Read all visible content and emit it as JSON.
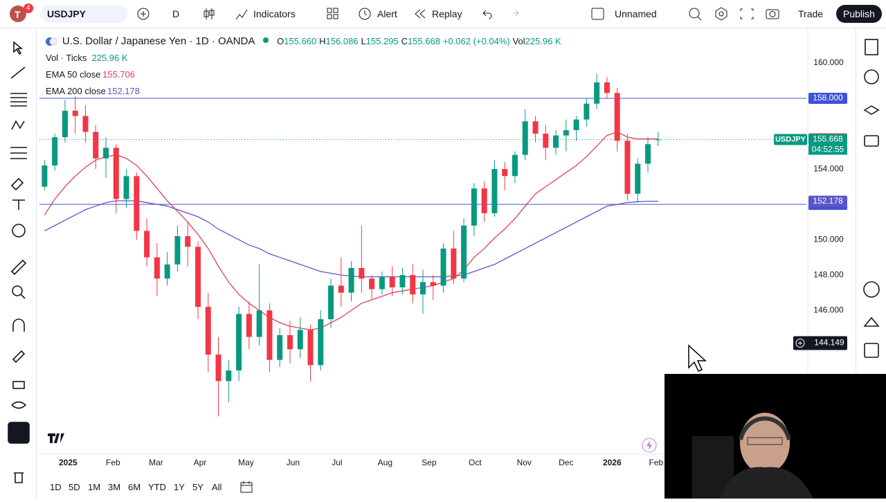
{
  "toolbar": {
    "avatar": "T",
    "badge": "4",
    "symbol": "USDJPY",
    "interval": "D",
    "indicators": "Indicators",
    "alert": "Alert",
    "replay": "Replay",
    "layout": "Unnamed",
    "trade": "Trade",
    "publish": "Publish"
  },
  "legend": {
    "title": "U.S. Dollar / Japanese Yen · 1D · OANDA",
    "o_label": "O",
    "open": "155.660",
    "h_label": "H",
    "high": "156.086",
    "l_label": "L",
    "low": "155.295",
    "c_label": "C",
    "close": "155.668",
    "change": "+0.062 (+0.04%)",
    "vol_label": "Vol",
    "vol": "225.96 K",
    "vol_ticks": "Vol · Ticks",
    "vol_ticks_value": "225.96 K"
  },
  "chart_data": {
    "type": "candlestick",
    "symbol_tag": "USDJPY",
    "countdown": "04:52:55",
    "ylim": [
      137.9,
      161.8
    ],
    "yticks": [
      {
        "value": 160,
        "label": "160.000"
      },
      {
        "value": 154,
        "label": "154.000"
      },
      {
        "value": 150,
        "label": "150.000"
      },
      {
        "value": 148,
        "label": "148.000"
      },
      {
        "value": 146,
        "label": "146.000"
      }
    ],
    "xlim": [
      -0.5,
      74.5
    ],
    "xticks": [
      {
        "value": 2.3,
        "label": "2025",
        "bold": true
      },
      {
        "value": 6.7,
        "label": "Feb"
      },
      {
        "value": 10.9,
        "label": "Mar"
      },
      {
        "value": 15.2,
        "label": "Apr"
      },
      {
        "value": 19.7,
        "label": "May"
      },
      {
        "value": 24.3,
        "label": "Jun"
      },
      {
        "value": 28.6,
        "label": "Jul"
      },
      {
        "value": 33.3,
        "label": "Aug"
      },
      {
        "value": 37.6,
        "label": "Sep"
      },
      {
        "value": 42.1,
        "label": "Oct"
      },
      {
        "value": 46.9,
        "label": "Nov"
      },
      {
        "value": 51,
        "label": "Dec"
      },
      {
        "value": 55.5,
        "label": "2026",
        "bold": true
      },
      {
        "value": 59.8,
        "label": "Feb"
      }
    ],
    "up_color": "#089981",
    "down_color": "#f23645",
    "last_close": {
      "value": 155.668,
      "label": "155.668"
    },
    "hlines": [
      {
        "value": 158,
        "label": "158.000"
      },
      {
        "value": 152,
        "label": "152.000"
      }
    ],
    "hline_color": "#3f51d9",
    "crosshair": {
      "value": 144.149,
      "label": "144.149"
    },
    "candles": [
      [
        153.0,
        154.5,
        152.8,
        154.2
      ],
      [
        154.2,
        156.0,
        153.9,
        155.8
      ],
      [
        155.8,
        157.9,
        155.5,
        157.3
      ],
      [
        157.3,
        158.1,
        156.0,
        157.0
      ],
      [
        157.0,
        157.6,
        155.5,
        156.1
      ],
      [
        156.1,
        156.5,
        154.0,
        154.6
      ],
      [
        154.6,
        155.8,
        153.5,
        155.2
      ],
      [
        155.2,
        155.4,
        151.5,
        152.3
      ],
      [
        152.3,
        154.0,
        151.8,
        153.6
      ],
      [
        153.6,
        153.8,
        150.0,
        150.5
      ],
      [
        150.5,
        151.2,
        148.5,
        149.0
      ],
      [
        149.0,
        149.8,
        146.8,
        147.8
      ],
      [
        147.8,
        149.3,
        147.4,
        148.6
      ],
      [
        148.6,
        150.8,
        148.2,
        150.2
      ],
      [
        150.2,
        151.0,
        148.5,
        149.6
      ],
      [
        149.6,
        149.9,
        145.5,
        146.2
      ],
      [
        146.2,
        147.0,
        142.5,
        143.5
      ],
      [
        143.5,
        144.5,
        140.0,
        142.0
      ],
      [
        142.0,
        143.2,
        140.8,
        142.6
      ],
      [
        142.6,
        146.2,
        142.0,
        145.8
      ],
      [
        145.8,
        146.5,
        143.8,
        144.5
      ],
      [
        144.5,
        148.6,
        144.0,
        146.0
      ],
      [
        146.0,
        146.4,
        142.5,
        143.2
      ],
      [
        143.2,
        145.0,
        142.8,
        144.6
      ],
      [
        144.6,
        145.4,
        143.0,
        143.8
      ],
      [
        143.8,
        145.6,
        143.3,
        144.9
      ],
      [
        144.9,
        145.2,
        142.0,
        142.9
      ],
      [
        142.9,
        146.0,
        142.6,
        145.5
      ],
      [
        145.5,
        147.8,
        145.0,
        147.4
      ],
      [
        147.4,
        149.0,
        146.2,
        147.0
      ],
      [
        147.0,
        148.8,
        146.5,
        148.4
      ],
      [
        148.4,
        150.8,
        147.0,
        147.8
      ],
      [
        147.8,
        148.0,
        146.6,
        147.2
      ],
      [
        147.2,
        148.2,
        146.9,
        147.9
      ],
      [
        147.9,
        148.5,
        146.8,
        147.3
      ],
      [
        147.3,
        148.4,
        146.9,
        148.0
      ],
      [
        148.0,
        148.6,
        146.4,
        146.9
      ],
      [
        146.9,
        148.3,
        145.8,
        147.6
      ],
      [
        147.6,
        148.0,
        146.6,
        147.4
      ],
      [
        147.4,
        149.8,
        147.0,
        149.5
      ],
      [
        149.5,
        150.5,
        147.5,
        147.8
      ],
      [
        147.8,
        151.2,
        147.6,
        150.8
      ],
      [
        150.8,
        153.2,
        150.2,
        152.9
      ],
      [
        152.9,
        153.3,
        151.0,
        151.5
      ],
      [
        151.5,
        154.5,
        151.3,
        154.0
      ],
      [
        154.0,
        154.4,
        152.8,
        153.6
      ],
      [
        153.6,
        155.0,
        153.2,
        154.8
      ],
      [
        154.8,
        157.4,
        154.5,
        156.7
      ],
      [
        156.7,
        157.0,
        155.5,
        156.0
      ],
      [
        156.0,
        156.5,
        154.5,
        155.2
      ],
      [
        155.2,
        156.2,
        154.8,
        155.9
      ],
      [
        155.9,
        156.8,
        155.0,
        156.2
      ],
      [
        156.2,
        157.0,
        155.6,
        156.8
      ],
      [
        156.8,
        158.0,
        156.4,
        157.7
      ],
      [
        157.7,
        159.4,
        157.4,
        158.9
      ],
      [
        158.9,
        159.2,
        158.0,
        158.3
      ],
      [
        158.3,
        158.6,
        155.0,
        155.6
      ],
      [
        155.6,
        156.0,
        152.2,
        152.6
      ],
      [
        152.6,
        154.6,
        152.1,
        154.3
      ],
      [
        154.3,
        155.8,
        153.8,
        155.4
      ],
      [
        155.66,
        156.086,
        155.295,
        155.668
      ]
    ],
    "series": [
      {
        "name": "EMA 50 close",
        "color": "#e0405a",
        "last": {
          "value": 155.706,
          "label": "155.706"
        },
        "values": [
          151.4,
          152.3,
          153.0,
          153.6,
          154.1,
          154.5,
          154.7,
          154.8,
          154.6,
          154.2,
          153.6,
          152.9,
          152.2,
          151.6,
          151.0,
          150.3,
          149.5,
          148.5,
          147.6,
          146.9,
          146.4,
          146.0,
          145.6,
          145.3,
          145.1,
          145.0,
          144.9,
          145.0,
          145.3,
          145.6,
          146.0,
          146.4,
          146.6,
          146.8,
          147.0,
          147.1,
          147.2,
          147.3,
          147.4,
          147.6,
          147.8,
          148.3,
          149.0,
          149.5,
          150.1,
          150.6,
          151.2,
          151.9,
          152.6,
          153.0,
          153.4,
          153.8,
          154.2,
          154.7,
          155.3,
          155.9,
          156.1,
          155.8,
          155.7,
          155.7,
          155.706
        ]
      },
      {
        "name": "EMA 200 close",
        "color": "#5b56c8",
        "last": {
          "value": 152.178,
          "label": "152.178"
        },
        "values": [
          150.5,
          150.8,
          151.1,
          151.4,
          151.7,
          151.9,
          152.1,
          152.2,
          152.2,
          152.2,
          152.1,
          152.0,
          151.9,
          151.7,
          151.5,
          151.3,
          151.0,
          150.6,
          150.3,
          150.0,
          149.7,
          149.5,
          149.2,
          149.0,
          148.8,
          148.6,
          148.4,
          148.2,
          148.1,
          148.0,
          147.95,
          147.9,
          147.9,
          147.9,
          147.9,
          147.9,
          147.9,
          147.9,
          147.9,
          147.9,
          147.95,
          148.0,
          148.2,
          148.4,
          148.6,
          148.9,
          149.2,
          149.5,
          149.8,
          150.1,
          150.4,
          150.7,
          151.0,
          151.3,
          151.6,
          151.9,
          152.0,
          152.1,
          152.15,
          152.17,
          152.178
        ]
      }
    ]
  },
  "range_buttons": [
    "1D",
    "5D",
    "1M",
    "3M",
    "6M",
    "YTD",
    "1Y",
    "5Y",
    "All"
  ]
}
